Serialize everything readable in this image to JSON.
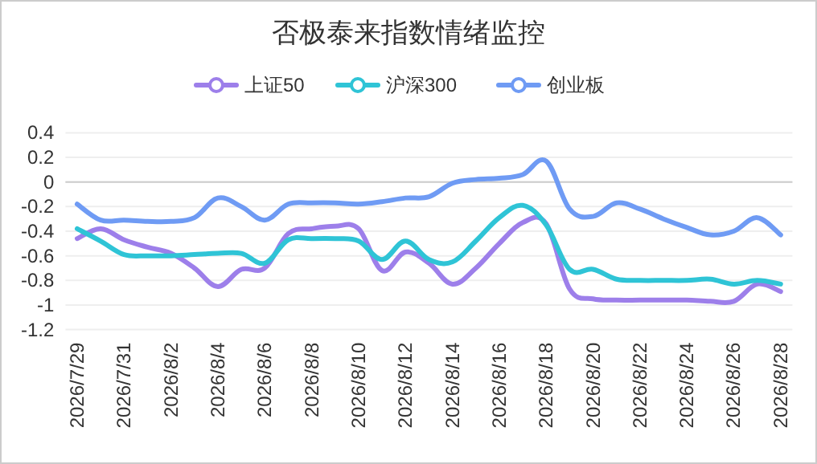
{
  "chart_data": {
    "type": "line",
    "title": "否极泰来指数情绪监控",
    "categories": [
      "2026/7/29",
      null,
      "2026/7/31",
      null,
      "2026/8/2",
      null,
      "2026/8/4",
      null,
      "2026/8/6",
      null,
      "2026/8/8",
      null,
      "2026/8/10",
      null,
      "2026/8/12",
      null,
      "2026/8/14",
      null,
      "2026/8/16",
      null,
      "2026/8/18",
      null,
      "2026/8/20",
      null,
      "2026/8/22",
      null,
      "2026/8/24",
      null,
      "2026/8/26",
      null,
      "2026/8/28"
    ],
    "series": [
      {
        "name": "上证50",
        "color": "#9d7fea",
        "values": [
          -0.46,
          -0.38,
          -0.47,
          -0.53,
          -0.58,
          -0.7,
          -0.85,
          -0.71,
          -0.7,
          -0.42,
          -0.38,
          -0.36,
          -0.38,
          -0.72,
          -0.57,
          -0.66,
          -0.83,
          -0.7,
          -0.5,
          -0.33,
          -0.34,
          -0.87,
          -0.95,
          -0.96,
          -0.96,
          -0.96,
          -0.96,
          -0.97,
          -0.97,
          -0.83,
          -0.89
        ]
      },
      {
        "name": "沪深300",
        "color": "#2fc4d6",
        "values": [
          -0.38,
          -0.48,
          -0.59,
          -0.6,
          -0.6,
          -0.59,
          -0.58,
          -0.58,
          -0.66,
          -0.47,
          -0.46,
          -0.46,
          -0.48,
          -0.63,
          -0.48,
          -0.63,
          -0.65,
          -0.48,
          -0.29,
          -0.19,
          -0.35,
          -0.71,
          -0.71,
          -0.79,
          -0.8,
          -0.8,
          -0.8,
          -0.79,
          -0.83,
          -0.8,
          -0.83
        ]
      },
      {
        "name": "创业板",
        "color": "#6f9bf4",
        "values": [
          -0.18,
          -0.31,
          -0.31,
          -0.32,
          -0.32,
          -0.29,
          -0.13,
          -0.2,
          -0.31,
          -0.18,
          -0.17,
          -0.17,
          -0.18,
          -0.16,
          -0.13,
          -0.12,
          -0.01,
          0.02,
          0.03,
          0.06,
          0.17,
          -0.22,
          -0.28,
          -0.17,
          -0.22,
          -0.3,
          -0.37,
          -0.43,
          -0.4,
          -0.29,
          -0.43
        ]
      }
    ],
    "ylim": [
      -1.2,
      0.4
    ],
    "yticks": [
      0.4,
      0.2,
      0,
      -0.2,
      -0.4,
      -0.6,
      -0.8,
      -1,
      -1.2
    ],
    "grid": "y",
    "legend": "top",
    "marker": "none",
    "line_style": "solid"
  }
}
